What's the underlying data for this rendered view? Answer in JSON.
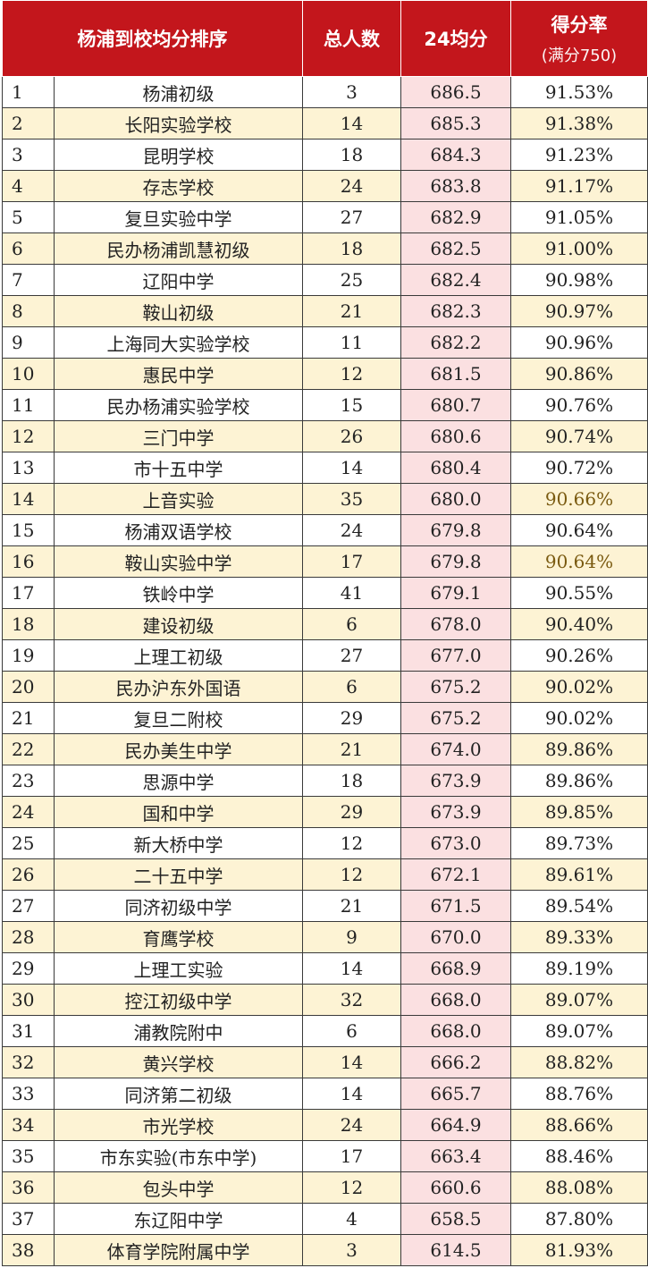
{
  "header": {
    "col_rank_school": "杨浦到校均分排序",
    "col_count": "总人数",
    "col_avg": "24均分",
    "col_rate": "得分率",
    "col_rate_sub": "(满分750)"
  },
  "rows": [
    {
      "rank": "1",
      "school": "杨浦初级",
      "count": "3",
      "avg": "686.5",
      "rate": "91.53%"
    },
    {
      "rank": "2",
      "school": "长阳实验学校",
      "count": "14",
      "avg": "685.3",
      "rate": "91.38%"
    },
    {
      "rank": "3",
      "school": "昆明学校",
      "count": "18",
      "avg": "684.3",
      "rate": "91.23%"
    },
    {
      "rank": "4",
      "school": "存志学校",
      "count": "24",
      "avg": "683.8",
      "rate": "91.17%"
    },
    {
      "rank": "5",
      "school": "复旦实验中学",
      "count": "27",
      "avg": "682.9",
      "rate": "91.05%"
    },
    {
      "rank": "6",
      "school": "民办杨浦凯慧初级",
      "count": "18",
      "avg": "682.5",
      "rate": "91.00%"
    },
    {
      "rank": "7",
      "school": "辽阳中学",
      "count": "25",
      "avg": "682.4",
      "rate": "90.98%"
    },
    {
      "rank": "8",
      "school": "鞍山初级",
      "count": "21",
      "avg": "682.3",
      "rate": "90.97%"
    },
    {
      "rank": "9",
      "school": "上海同大实验学校",
      "count": "11",
      "avg": "682.2",
      "rate": "90.96%"
    },
    {
      "rank": "10",
      "school": "惠民中学",
      "count": "12",
      "avg": "681.5",
      "rate": "90.86%"
    },
    {
      "rank": "11",
      "school": "民办杨浦实验学校",
      "count": "15",
      "avg": "680.7",
      "rate": "90.76%"
    },
    {
      "rank": "12",
      "school": "三门中学",
      "count": "26",
      "avg": "680.6",
      "rate": "90.74%"
    },
    {
      "rank": "13",
      "school": "市十五中学",
      "count": "14",
      "avg": "680.4",
      "rate": "90.72%"
    },
    {
      "rank": "14",
      "school": "上音实验",
      "count": "35",
      "avg": "680.0",
      "rate": "90.66%"
    },
    {
      "rank": "15",
      "school": "杨浦双语学校",
      "count": "24",
      "avg": "679.8",
      "rate": "90.64%"
    },
    {
      "rank": "16",
      "school": "鞍山实验中学",
      "count": "17",
      "avg": "679.8",
      "rate": "90.64%"
    },
    {
      "rank": "17",
      "school": "铁岭中学",
      "count": "41",
      "avg": "679.1",
      "rate": "90.55%"
    },
    {
      "rank": "18",
      "school": "建设初级",
      "count": "6",
      "avg": "678.0",
      "rate": "90.40%"
    },
    {
      "rank": "19",
      "school": "上理工初级",
      "count": "27",
      "avg": "677.0",
      "rate": "90.26%"
    },
    {
      "rank": "20",
      "school": "民办沪东外国语",
      "count": "6",
      "avg": "675.2",
      "rate": "90.02%"
    },
    {
      "rank": "21",
      "school": "复旦二附校",
      "count": "29",
      "avg": "675.2",
      "rate": "90.02%"
    },
    {
      "rank": "22",
      "school": "民办美生中学",
      "count": "21",
      "avg": "674.0",
      "rate": "89.86%"
    },
    {
      "rank": "23",
      "school": "思源中学",
      "count": "18",
      "avg": "673.9",
      "rate": "89.86%"
    },
    {
      "rank": "24",
      "school": "国和中学",
      "count": "29",
      "avg": "673.9",
      "rate": "89.85%"
    },
    {
      "rank": "25",
      "school": "新大桥中学",
      "count": "12",
      "avg": "673.0",
      "rate": "89.73%"
    },
    {
      "rank": "26",
      "school": "二十五中学",
      "count": "12",
      "avg": "672.1",
      "rate": "89.61%"
    },
    {
      "rank": "27",
      "school": "同济初级中学",
      "count": "21",
      "avg": "671.5",
      "rate": "89.54%"
    },
    {
      "rank": "28",
      "school": "育鹰学校",
      "count": "9",
      "avg": "670.0",
      "rate": "89.33%"
    },
    {
      "rank": "29",
      "school": "上理工实验",
      "count": "14",
      "avg": "668.9",
      "rate": "89.19%"
    },
    {
      "rank": "30",
      "school": "控江初级中学",
      "count": "32",
      "avg": "668.0",
      "rate": "89.07%"
    },
    {
      "rank": "31",
      "school": "浦教院附中",
      "count": "6",
      "avg": "668.0",
      "rate": "89.07%"
    },
    {
      "rank": "32",
      "school": "黄兴学校",
      "count": "14",
      "avg": "666.2",
      "rate": "88.82%"
    },
    {
      "rank": "33",
      "school": "同济第二初级",
      "count": "14",
      "avg": "665.7",
      "rate": "88.76%"
    },
    {
      "rank": "34",
      "school": "市光学校",
      "count": "24",
      "avg": "664.9",
      "rate": "88.66%"
    },
    {
      "rank": "35",
      "school": "市东实验(市东中学)",
      "count": "17",
      "avg": "663.4",
      "rate": "88.46%"
    },
    {
      "rank": "36",
      "school": "包头中学",
      "count": "12",
      "avg": "660.6",
      "rate": "88.08%"
    },
    {
      "rank": "37",
      "school": "东辽阳中学",
      "count": "4",
      "avg": "658.5",
      "rate": "87.80%"
    },
    {
      "rank": "38",
      "school": "体育学院附属中学",
      "count": "3",
      "avg": "614.5",
      "rate": "81.93%"
    }
  ],
  "colors": {
    "header_bg": "#c3161c",
    "row_alt_bg": "#fdf3d4",
    "avg_col_bg": "#fbe0e1"
  }
}
